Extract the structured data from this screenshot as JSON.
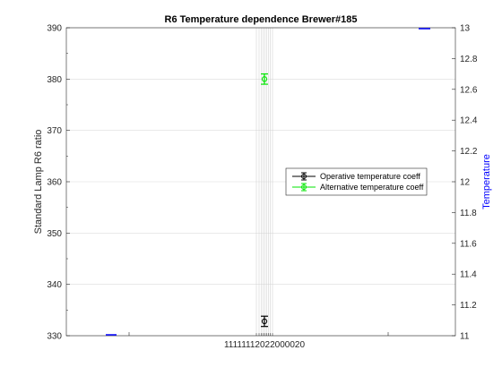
{
  "chart_data": {
    "type": "scatter",
    "title": "R6 Temperature dependence Brewer#185",
    "ylabel": "Standard Lamp R6 ratio",
    "y2label": "Temperature",
    "ylim": [
      330,
      390
    ],
    "y2lim": [
      11,
      13
    ],
    "yticks": [
      "330",
      "340",
      "350",
      "360",
      "370",
      "380",
      "390"
    ],
    "y2ticks": [
      "11",
      "11.2",
      "11.4",
      "11.6",
      "11.8",
      "12",
      "12.2",
      "12.4",
      "12.6",
      "12.8",
      "13"
    ],
    "xticklabel_cluster": "11111112022000020",
    "grid": true,
    "legend_position": "right",
    "colors": {
      "operative": "#000000",
      "alternative": "#00e600",
      "temperature": "#0000ff"
    },
    "series": [
      {
        "name": "Operative temperature coeff",
        "y": 332.8,
        "error": 1.0
      },
      {
        "name": "Alternative temperature coeff",
        "y": 380.0,
        "error": 1.0
      }
    ],
    "temperature_marks": [
      11,
      13
    ]
  }
}
